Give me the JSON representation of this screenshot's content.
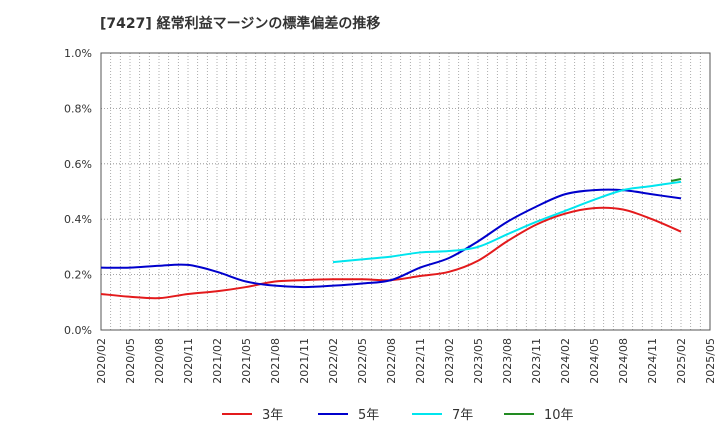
{
  "chart_data": {
    "type": "line",
    "title": "[7427]  経常利益マージンの標準偏差の推移",
    "xlabel": "",
    "ylabel": "",
    "ylim": [
      0,
      1.0
    ],
    "y_ticks": [
      "0.0%",
      "0.2%",
      "0.4%",
      "0.6%",
      "0.8%",
      "1.0%"
    ],
    "x_ticks": [
      "2020/02",
      "2020/05",
      "2020/08",
      "2020/11",
      "2021/02",
      "2021/05",
      "2021/08",
      "2021/11",
      "2022/02",
      "2022/05",
      "2022/08",
      "2022/11",
      "2023/02",
      "2023/05",
      "2023/08",
      "2023/11",
      "2024/02",
      "2024/05",
      "2024/08",
      "2024/11",
      "2025/02",
      "2025/05"
    ],
    "grid": true,
    "legend_position": "bottom",
    "series": [
      {
        "name": "3年",
        "color": "#e31a1c",
        "values": [
          0.13,
          0.12,
          0.115,
          0.13,
          0.14,
          0.155,
          0.175,
          0.18,
          0.183,
          0.183,
          0.18,
          0.195,
          0.21,
          0.25,
          0.32,
          0.38,
          0.42,
          0.44,
          0.435,
          0.4,
          0.355
        ]
      },
      {
        "name": "5年",
        "color": "#0000cc",
        "values": [
          0.225,
          0.225,
          0.232,
          0.235,
          0.21,
          0.175,
          0.16,
          0.155,
          0.16,
          0.168,
          0.18,
          0.225,
          0.26,
          0.32,
          0.39,
          0.445,
          0.49,
          0.505,
          0.505,
          0.49,
          0.475
        ]
      },
      {
        "name": "7年",
        "color": "#00e5ee",
        "values": [
          null,
          null,
          null,
          null,
          null,
          null,
          null,
          null,
          0.245,
          0.255,
          0.265,
          0.28,
          0.285,
          0.3,
          0.345,
          0.39,
          0.43,
          0.47,
          0.505,
          0.52,
          0.535
        ]
      },
      {
        "name": "10年",
        "color": "#228b22",
        "values": [
          null,
          null,
          null,
          null,
          null,
          null,
          null,
          null,
          null,
          null,
          null,
          null,
          null,
          null,
          null,
          null,
          null,
          null,
          null,
          null,
          0.545
        ]
      }
    ]
  }
}
